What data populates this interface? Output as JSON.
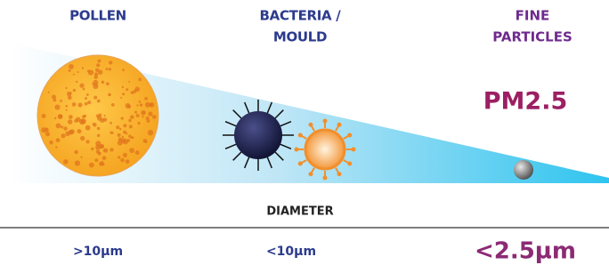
{
  "columns": [
    {
      "title": [
        "POLLEN"
      ],
      "size": ">10µm"
    },
    {
      "title": [
        "BACTERIA /",
        "MOULD"
      ],
      "size": "<10µm"
    },
    {
      "title": [
        "FINE",
        "PARTICLES"
      ],
      "size": "<2.5µm",
      "badge": "PM2.5"
    }
  ],
  "axis_label": "DIAMETER"
}
